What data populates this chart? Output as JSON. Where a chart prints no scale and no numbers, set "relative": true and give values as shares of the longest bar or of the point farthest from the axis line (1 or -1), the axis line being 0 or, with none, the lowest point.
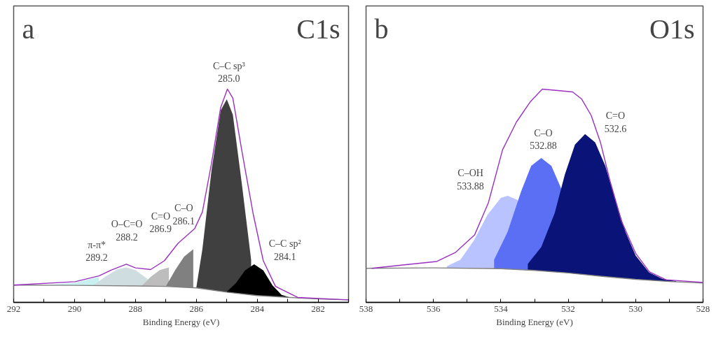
{
  "chart_data": [
    {
      "type": "area",
      "title": "C1s",
      "xlabel": "Binding Energy (eV)",
      "relative": true,
      "tick_labels": "x",
      "grid": false,
      "line_style": "solid",
      "xlim": [
        292,
        281
      ],
      "xticks": [
        292,
        {
          "value": 291,
          "label": null
        },
        290,
        {
          "value": 289,
          "label": null
        },
        288,
        {
          "value": 287,
          "label": null
        },
        286,
        {
          "value": 285,
          "label": null
        },
        284,
        {
          "value": 283,
          "label": null
        },
        282,
        {
          "value": 281,
          "label": null
        }
      ],
      "annotations": [
        "a",
        "π-π*\n289.2",
        "O–C=O\n288.2",
        "C=O\n286.9",
        "C–O\n286.1",
        "C–C sp³\n285.0",
        "C–C sp²\n284.1"
      ],
      "series": [
        {
          "color": "#c8f0f0",
          "x": [
            291,
            290,
            289.2
          ],
          "values": [
            0.081,
            0.092,
            0.119
          ]
        },
        {
          "color": "#cfdde0",
          "x": [
            289.4,
            289.0,
            288.6,
            288.3,
            288.0,
            287.6
          ],
          "values": [
            0.079,
            0.12,
            0.155,
            0.164,
            0.152,
            0.11
          ]
        },
        {
          "color": "#bdbdbd",
          "x": [
            287.8,
            287.5,
            287.2,
            286.9
          ],
          "values": [
            0.076,
            0.12,
            0.152,
            0.164
          ]
        },
        {
          "color": "#808080",
          "x": [
            287.0,
            286.7,
            286.4,
            286.1
          ],
          "values": [
            0.075,
            0.15,
            0.215,
            0.249
          ]
        },
        {
          "color": "#404040",
          "x": [
            286.0,
            285.8,
            285.5,
            285.2,
            285.0,
            284.8,
            284.5,
            284.2
          ],
          "values": [
            0.07,
            0.25,
            0.62,
            0.9,
            0.952,
            0.88,
            0.55,
            0.2
          ]
        },
        {
          "color": "#000000",
          "x": [
            285.0,
            284.7,
            284.4,
            284.1,
            283.8,
            283.5,
            283.2,
            282.9
          ],
          "values": [
            0.05,
            0.09,
            0.15,
            0.179,
            0.15,
            0.08,
            0.035,
            0.022
          ]
        },
        {
          "type": "line",
          "color": "#808080",
          "x": [
            292,
            290,
            288,
            287,
            286,
            285,
            284,
            283,
            282,
            281
          ],
          "values": [
            0.081,
            0.08,
            0.077,
            0.075,
            0.068,
            0.048,
            0.032,
            0.024,
            0.016,
            0.012
          ]
        },
        {
          "type": "line",
          "color": "#9b30c0",
          "x": [
            292,
            289.98,
            289.2,
            288.8,
            288.3,
            288.0,
            287.5,
            287.05,
            286.6,
            286.05,
            285.8,
            285.5,
            285.2,
            284.98,
            284.8,
            284.5,
            284.13,
            283.8,
            283.4,
            282.67,
            281.0
          ],
          "values": [
            0.081,
            0.097,
            0.124,
            0.151,
            0.179,
            0.162,
            0.154,
            0.195,
            0.277,
            0.347,
            0.424,
            0.653,
            0.914,
            1.0,
            0.958,
            0.707,
            0.413,
            0.195,
            0.075,
            0.023,
            0.012
          ]
        }
      ]
    },
    {
      "type": "area",
      "title": "O1s",
      "xlabel": "Binding Energy (eV)",
      "relative": true,
      "tick_labels": "x",
      "grid": false,
      "line_style": "solid",
      "xlim": [
        538,
        528
      ],
      "xticks": [
        538,
        {
          "value": 537,
          "label": null
        },
        536,
        {
          "value": 535,
          "label": null
        },
        534,
        {
          "value": 533,
          "label": null
        },
        532,
        {
          "value": 531,
          "label": null
        },
        530,
        {
          "value": 529,
          "label": null
        },
        528
      ],
      "annotations": [
        "b",
        "C–OH\n533.88",
        "C–O\n532.88",
        "C=O\n532.6"
      ],
      "series": [
        {
          "color": "#b9c3ff",
          "x": [
            535.6,
            535.2,
            534.8,
            534.4,
            534.0,
            533.8,
            533.5
          ],
          "values": [
            0.17,
            0.2,
            0.29,
            0.41,
            0.49,
            0.5,
            0.48
          ]
        },
        {
          "color": "#5b6ff5",
          "x": [
            534.2,
            533.8,
            533.4,
            533.1,
            532.8,
            532.5,
            532.2
          ],
          "values": [
            0.2,
            0.33,
            0.52,
            0.64,
            0.677,
            0.64,
            0.53
          ]
        },
        {
          "color": "#0a1478",
          "x": [
            533.2,
            532.8,
            532.4,
            532.1,
            531.8,
            531.5,
            531.2,
            530.9,
            530.6,
            530.3,
            530.0,
            529.6,
            529.2,
            528.8
          ],
          "values": [
            0.18,
            0.26,
            0.42,
            0.6,
            0.74,
            0.789,
            0.75,
            0.64,
            0.48,
            0.33,
            0.22,
            0.14,
            0.11,
            0.1
          ]
        },
        {
          "type": "line",
          "color": "#808080",
          "x": [
            538,
            536,
            534,
            533,
            532,
            531,
            530,
            529,
            528
          ],
          "values": [
            0.16,
            0.162,
            0.158,
            0.15,
            0.138,
            0.122,
            0.108,
            0.098,
            0.091
          ]
        },
        {
          "type": "line",
          "color": "#9b30c0",
          "x": [
            537.83,
            536.86,
            535.9,
            535.34,
            534.78,
            534.37,
            533.95,
            533.54,
            533.12,
            532.77,
            532.36,
            531.87,
            531.6,
            531.32,
            531.04,
            530.77,
            530.42,
            530.0,
            529.59,
            529.1,
            528.0
          ],
          "values": [
            0.16,
            0.176,
            0.192,
            0.235,
            0.316,
            0.467,
            0.715,
            0.845,
            0.942,
            1.0,
            0.994,
            0.987,
            0.953,
            0.877,
            0.748,
            0.575,
            0.381,
            0.23,
            0.143,
            0.106,
            0.094
          ]
        }
      ]
    }
  ]
}
